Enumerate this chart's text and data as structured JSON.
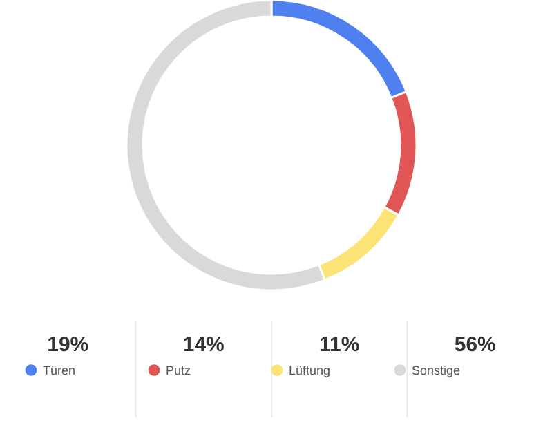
{
  "chart_data": {
    "type": "donut",
    "categories": [
      "Türen",
      "Putz",
      "Lüftung",
      "Sonstige"
    ],
    "values": [
      19,
      14,
      11,
      56
    ],
    "value_labels": [
      "19%",
      "14%",
      "11%",
      "56%"
    ],
    "colors": [
      "#4f80f0",
      "#e05555",
      "#fbe475",
      "#d9d9d9"
    ],
    "legend": "bottom"
  }
}
